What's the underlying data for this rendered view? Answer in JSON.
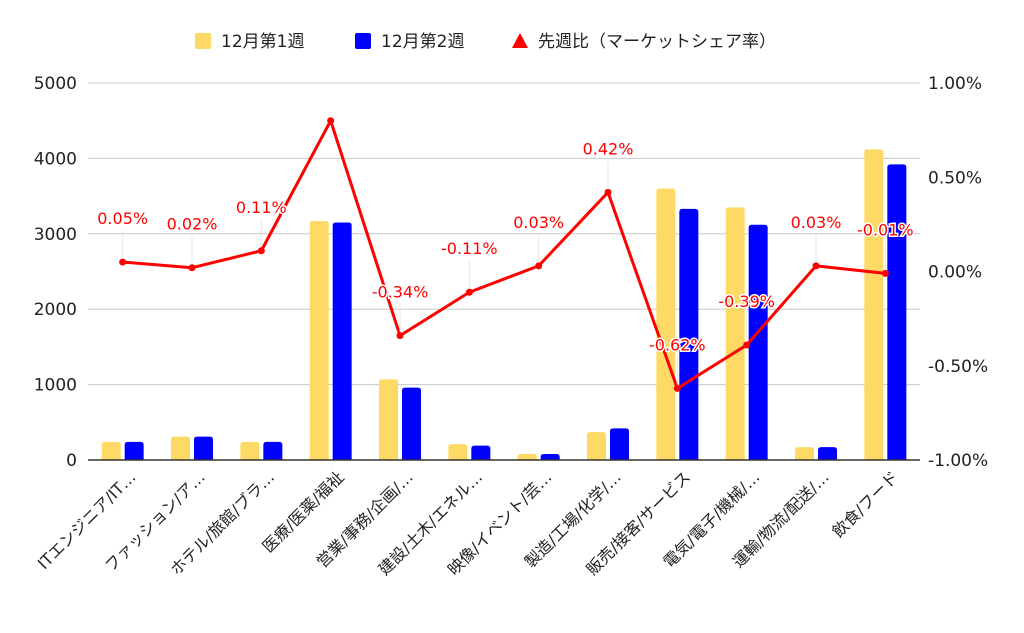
{
  "chart_data": {
    "type": "bar",
    "title": "",
    "xlabel": "",
    "ylabel": "",
    "categories": [
      "ITエンジニア/IT…",
      "ファッション/ア…",
      "ホテル/旅館/ブラ…",
      "医療/医薬/福祉",
      "営業/事務/企画/…",
      "建設/土木/エネル…",
      "映像/イベント/芸…",
      "製造/工場/化学/…",
      "販売/接客/サービス",
      "電気/電子/機械/…",
      "運輸/物流/配送/…",
      "飲食/フード"
    ],
    "series": [
      {
        "name": "12月第1週",
        "type": "bar",
        "axis": "left",
        "color": "#FFD966",
        "values": [
          240,
          310,
          240,
          3170,
          1070,
          210,
          80,
          370,
          3600,
          3350,
          170,
          4120
        ]
      },
      {
        "name": "12月第2週",
        "type": "bar",
        "axis": "left",
        "color": "#0000FF",
        "values": [
          240,
          310,
          240,
          3150,
          960,
          190,
          80,
          420,
          3330,
          3120,
          170,
          3920
        ]
      },
      {
        "name": "先週比（マーケットシェア率）",
        "type": "line",
        "axis": "right",
        "color": "#FF0000",
        "values": [
          0.05,
          0.02,
          0.11,
          0.8,
          -0.34,
          -0.11,
          0.03,
          0.42,
          -0.62,
          -0.39,
          0.03,
          -0.01
        ],
        "labels": [
          "0.05%",
          "0.02%",
          "0.11%",
          "",
          "-0.34%",
          "-0.11%",
          "0.03%",
          "0.42%",
          "-0.62%",
          "-0.39%",
          "0.03%",
          "-0.01%"
        ]
      }
    ],
    "ylim": [
      0,
      5000
    ],
    "y_ticks": [
      "0",
      "1000",
      "2000",
      "3000",
      "4000",
      "5000"
    ],
    "y2lim": [
      -1.0,
      1.0
    ],
    "y2_ticks": [
      "-1.00%",
      "-0.50%",
      "0.00%",
      "0.50%",
      "1.00%"
    ],
    "legend_position": "top",
    "grid": true
  }
}
